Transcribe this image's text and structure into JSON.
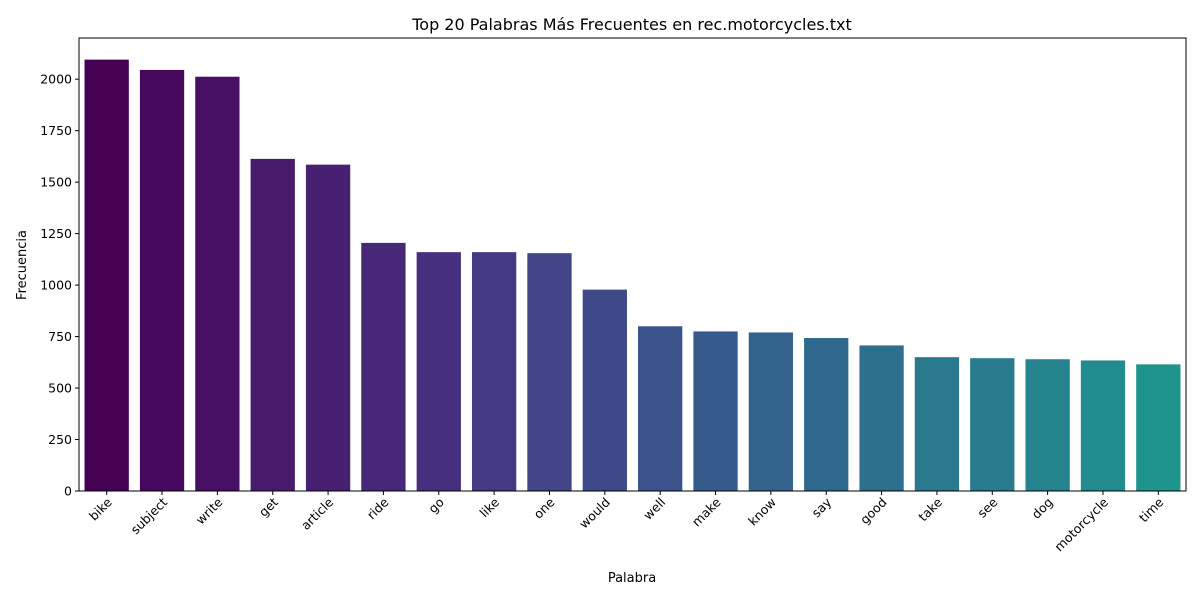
{
  "chart_data": {
    "type": "bar",
    "title": "Top 20 Palabras Más Frecuentes en rec.motorcycles.txt",
    "xlabel": "Palabra",
    "ylabel": "Frecuencia",
    "categories": [
      "bike",
      "subject",
      "write",
      "get",
      "article",
      "ride",
      "go",
      "like",
      "one",
      "would",
      "well",
      "make",
      "know",
      "say",
      "good",
      "take",
      "see",
      "dog",
      "motorcycle",
      "time"
    ],
    "values": [
      2095,
      2045,
      2012,
      1613,
      1585,
      1205,
      1160,
      1160,
      1155,
      978,
      800,
      775,
      770,
      743,
      707,
      650,
      645,
      640,
      634,
      615
    ],
    "colors": [
      "#440154",
      "#46085c",
      "#471063",
      "#481a6c",
      "#482071",
      "#472878",
      "#46307e",
      "#443983",
      "#414487",
      "#3e4989",
      "#3b528b",
      "#375a8c",
      "#33638d",
      "#30698e",
      "#2d708e",
      "#2a788e",
      "#287c8e",
      "#25838e",
      "#228b8d",
      "#1f948c"
    ],
    "yticks": [
      0,
      250,
      500,
      750,
      1000,
      1250,
      1500,
      1750,
      2000
    ],
    "ylim": [
      0,
      2200
    ],
    "grid": false,
    "legend": "none"
  }
}
